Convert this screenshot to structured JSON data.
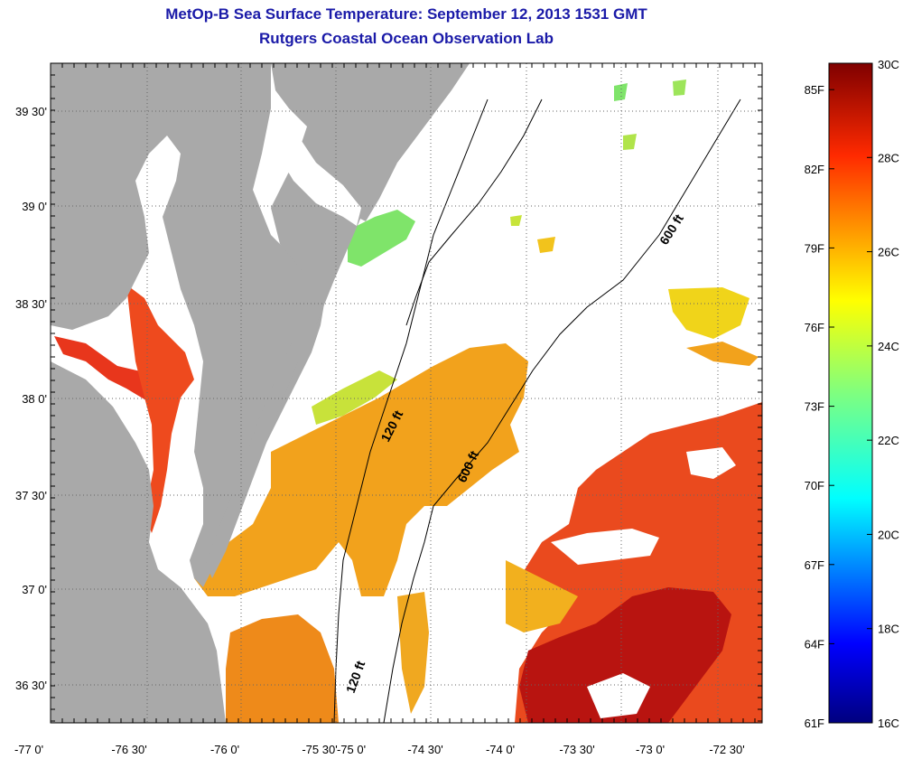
{
  "title": "MetOp-B Sea Surface Temperature:  September 12, 2013 1531 GMT",
  "subtitle": "Rutgers Coastal Ocean Observation Lab",
  "map": {
    "lon_ticks": [
      "-77 0'",
      "-76 30'",
      "-76 0'",
      "-75 30'",
      "-75 0'",
      "-74 30'",
      "-74 0'",
      "-73 30'",
      "-73 0'",
      "-72 30'"
    ],
    "lat_ticks": [
      "39 30'",
      "39 0'",
      "38 30'",
      "38 0'",
      "37 30'",
      "37 0'",
      "36 30'"
    ],
    "isobath_labels": [
      {
        "text": "120 ft",
        "ref": "shelf-break-upper"
      },
      {
        "text": "600 ft",
        "ref": "slope-mid"
      },
      {
        "text": "600 ft",
        "ref": "slope-north"
      },
      {
        "text": "120 ft",
        "ref": "shelf-break-lower"
      }
    ],
    "colors": {
      "land": "#a9a9a9",
      "no_data": "#ffffff",
      "grid": "#666666"
    }
  },
  "colorbar": {
    "celsius_labels": [
      "30C",
      "28C",
      "26C",
      "24C",
      "22C",
      "20C",
      "18C",
      "16C"
    ],
    "fahrenheit_labels": [
      "85F",
      "82F",
      "79F",
      "76F",
      "73F",
      "70F",
      "67F",
      "64F",
      "61F"
    ],
    "range_c": [
      16,
      30
    ],
    "range_f": [
      61,
      86
    ]
  }
}
